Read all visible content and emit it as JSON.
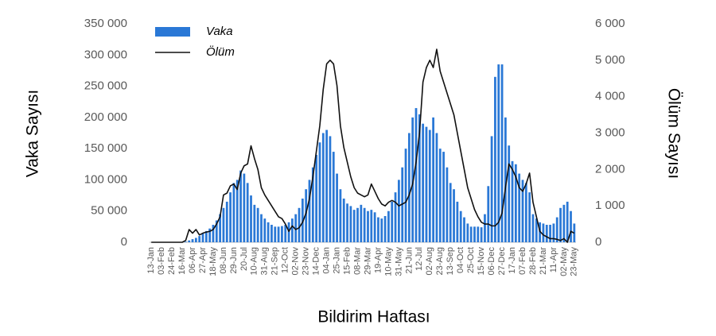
{
  "chart_data": {
    "type": "bar",
    "x_label": "Bildirim Haftası",
    "y_label": "Vaka Sayısı",
    "y2_label": "Ölüm Sayısı",
    "categories": [
      "13-Jan",
      null,
      null,
      "03-Feb",
      null,
      null,
      "24-Feb",
      null,
      null,
      "16-Mar",
      null,
      null,
      "06-Apr",
      null,
      null,
      "27-Apr",
      null,
      null,
      "18-May",
      null,
      null,
      "08-Jun",
      null,
      null,
      "29-Jun",
      null,
      null,
      "20-Jul",
      null,
      null,
      "10-Aug",
      null,
      null,
      "31-Aug",
      null,
      null,
      "21-Sep",
      null,
      null,
      "12-Oct",
      null,
      null,
      "02-Nov",
      null,
      null,
      "23-Nov",
      null,
      null,
      "14-Dec",
      null,
      null,
      "04-Jan",
      null,
      null,
      "25-Jan",
      null,
      null,
      "15-Feb",
      null,
      null,
      "08-Mar",
      null,
      null,
      "29-Mar",
      null,
      null,
      "19-Apr",
      null,
      null,
      "10-May",
      null,
      null,
      "31-May",
      null,
      null,
      "21-Jun",
      null,
      null,
      "12-Jul",
      null,
      null,
      "02-Aug",
      null,
      null,
      "23-Aug",
      null,
      null,
      "13-Sep",
      null,
      null,
      "04-Oct",
      null,
      null,
      "25-Oct",
      null,
      null,
      "15-Nov",
      null,
      null,
      "06-Dec",
      null,
      null,
      "27-Dec",
      null,
      null,
      "17-Jan",
      null,
      null,
      "07-Feb",
      null,
      null,
      "28-Feb",
      null,
      null,
      "21-Mar",
      null,
      null,
      "11-Apr",
      null,
      null,
      "02-May",
      null,
      null,
      "23-May"
    ],
    "series": [
      {
        "name": "Vaka",
        "type": "bar",
        "color": "#2a78d6",
        "values": [
          0,
          0,
          0,
          0,
          0,
          0,
          0,
          0,
          0,
          0,
          1000,
          3000,
          5000,
          7000,
          10000,
          14000,
          18000,
          22000,
          28000,
          35000,
          45000,
          55000,
          65000,
          80000,
          95000,
          100000,
          115000,
          110000,
          95000,
          75000,
          60000,
          55000,
          45000,
          38000,
          32000,
          28000,
          25000,
          25000,
          26000,
          28000,
          32000,
          38000,
          45000,
          55000,
          70000,
          85000,
          100000,
          120000,
          140000,
          160000,
          175000,
          180000,
          170000,
          145000,
          110000,
          85000,
          70000,
          62000,
          58000,
          52000,
          55000,
          60000,
          55000,
          50000,
          52000,
          48000,
          40000,
          38000,
          42000,
          50000,
          65000,
          80000,
          100000,
          120000,
          150000,
          175000,
          200000,
          215000,
          205000,
          190000,
          185000,
          180000,
          200000,
          175000,
          150000,
          145000,
          120000,
          95000,
          85000,
          65000,
          50000,
          40000,
          30000,
          25000,
          25000,
          25000,
          24000,
          45000,
          90000,
          170000,
          265000,
          285000,
          285000,
          200000,
          155000,
          130000,
          125000,
          110000,
          100000,
          95000,
          80000,
          45000,
          38000,
          32000,
          30000,
          28000,
          28000,
          30000,
          40000,
          55000,
          60000,
          65000,
          50000,
          30000
        ]
      },
      {
        "name": "Ölüm",
        "type": "line",
        "axis": "y2",
        "color": "#111111",
        "values": [
          0,
          0,
          0,
          0,
          0,
          0,
          0,
          0,
          0,
          0,
          50,
          350,
          250,
          350,
          200,
          250,
          280,
          300,
          350,
          500,
          700,
          1300,
          1350,
          1550,
          1600,
          1450,
          1900,
          2100,
          2150,
          2650,
          2300,
          2000,
          1500,
          1300,
          1150,
          1000,
          850,
          700,
          650,
          500,
          300,
          450,
          350,
          400,
          550,
          800,
          1200,
          1800,
          2500,
          3200,
          4200,
          4900,
          5000,
          4900,
          4300,
          3200,
          2600,
          2200,
          1800,
          1500,
          1350,
          1300,
          1250,
          1300,
          1600,
          1400,
          1200,
          1050,
          1000,
          1100,
          1150,
          1100,
          1000,
          1050,
          1100,
          1300,
          1600,
          2200,
          3000,
          4400,
          4800,
          5000,
          4800,
          5300,
          4700,
          4400,
          4100,
          3800,
          3500,
          3000,
          2500,
          2000,
          1500,
          1200,
          900,
          700,
          550,
          500,
          500,
          450,
          450,
          550,
          800,
          1500,
          2150,
          2000,
          1800,
          1500,
          1400,
          1600,
          1900,
          1100,
          700,
          300,
          200,
          150,
          100,
          100,
          80,
          50,
          100,
          0,
          300,
          250
        ]
      }
    ],
    "ylim": [
      0,
      350000
    ],
    "yticks": [
      0,
      {
        "value": 50000,
        "label": "50 000"
      },
      {
        "value": 100000,
        "label": "100 000"
      },
      {
        "value": 150000,
        "label": "150 000"
      },
      {
        "value": 200000,
        "label": "200 000"
      },
      {
        "value": 250000,
        "label": "250 000"
      },
      {
        "value": 300000,
        "label": "300 000"
      },
      {
        "value": 350000,
        "label": "350 000"
      }
    ],
    "y2lim": [
      0,
      6000
    ],
    "y2ticks": [
      0,
      {
        "value": 1000,
        "label": "1 000"
      },
      {
        "value": 2000,
        "label": "2 000"
      },
      {
        "value": 3000,
        "label": "3 000"
      },
      {
        "value": 4000,
        "label": "4 000"
      },
      {
        "value": 5000,
        "label": "5 000"
      },
      {
        "value": 6000,
        "label": "6 000"
      }
    ],
    "legend": "top-left",
    "grid": false
  }
}
